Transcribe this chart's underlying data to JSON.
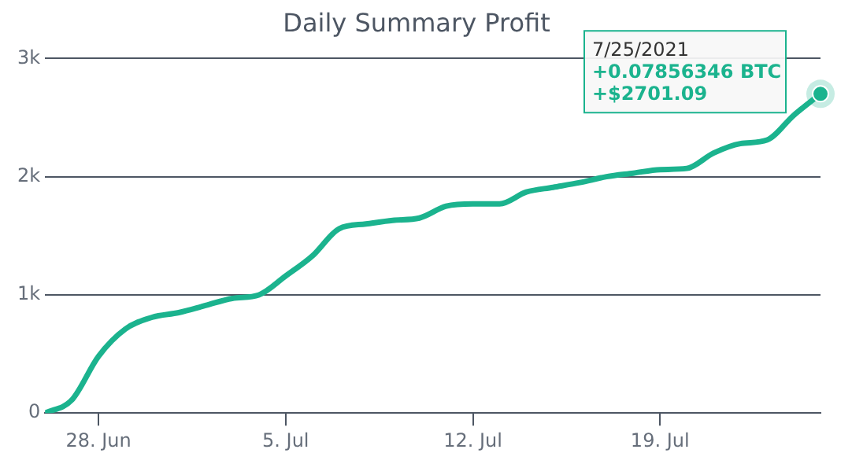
{
  "chart_data": {
    "type": "line",
    "title": "Daily Summary Profit",
    "x": [
      "2021-06-26",
      "2021-06-27",
      "2021-06-28",
      "2021-06-29",
      "2021-06-30",
      "2021-07-01",
      "2021-07-02",
      "2021-07-03",
      "2021-07-04",
      "2021-07-05",
      "2021-07-06",
      "2021-07-07",
      "2021-07-08",
      "2021-07-09",
      "2021-07-10",
      "2021-07-11",
      "2021-07-12",
      "2021-07-13",
      "2021-07-14",
      "2021-07-15",
      "2021-07-16",
      "2021-07-17",
      "2021-07-18",
      "2021-07-19",
      "2021-07-20",
      "2021-07-21",
      "2021-07-22",
      "2021-07-23",
      "2021-07-24",
      "2021-07-25"
    ],
    "series": [
      {
        "color": "#1bb38e",
        "values": [
          0,
          110,
          480,
          710,
          810,
          850,
          910,
          970,
          1000,
          1160,
          1330,
          1560,
          1600,
          1630,
          1650,
          1750,
          1770,
          1770,
          1870,
          1910,
          1950,
          2000,
          2030,
          2060,
          2070,
          2200,
          2280,
          2310,
          2520,
          2701.09
        ]
      }
    ],
    "xlim": [
      "2021-06-26",
      "2021-07-25"
    ],
    "xticks": [
      {
        "value": "2021-06-28",
        "label": "28. Jun"
      },
      {
        "value": "2021-07-05",
        "label": "5. Jul"
      },
      {
        "value": "2021-07-12",
        "label": "12. Jul"
      },
      {
        "value": "2021-07-19",
        "label": "19. Jul"
      }
    ],
    "ylim": [
      0,
      3000
    ],
    "yticks": [
      0,
      {
        "value": 1000,
        "label": "1k"
      },
      {
        "value": 2000,
        "label": "2k"
      },
      {
        "value": 3000,
        "label": "3k"
      }
    ],
    "grid": "y",
    "legend": false,
    "marker": "none",
    "line_style": "solid",
    "annotations": [
      {
        "text": "7/25/2021\n+0.07856346 BTC\n+$2701.09",
        "x": "2021-07-25",
        "y": 2701.09
      }
    ]
  }
}
